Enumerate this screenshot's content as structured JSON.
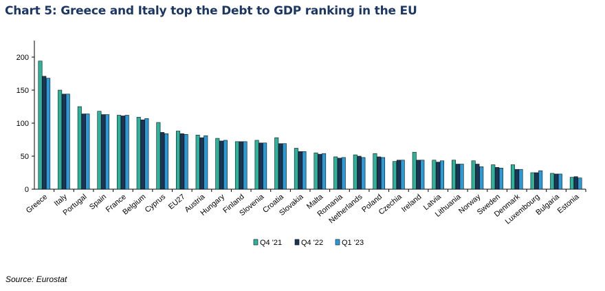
{
  "page": {
    "title": "Chart 5: Greece and Italy top the Debt to GDP ranking in the EU",
    "source": "Source: Eurostat"
  },
  "chart_data": {
    "type": "bar",
    "title": "Chart 5: Greece and Italy top the Debt to GDP ranking in the EU",
    "xlabel": "",
    "ylabel": "",
    "ylim": [
      0,
      225
    ],
    "yticks": [
      0,
      50,
      100,
      150,
      200
    ],
    "grid": false,
    "legend": "bottom-center",
    "categories": [
      "Greece",
      "Italy",
      "Portugal",
      "Spain",
      "France",
      "Belgium",
      "Cyprus",
      "EU27",
      "Austria",
      "Hungary",
      "Finland",
      "Slovenia",
      "Croatia",
      "Slovakia",
      "Malta",
      "Romania",
      "Netherlands",
      "Poland",
      "Czechia",
      "Ireland",
      "Latvia",
      "Lithuania",
      "Norway",
      "Sweden",
      "Denmark",
      "Luxembourg",
      "Bulgaria",
      "Estonia"
    ],
    "series": [
      {
        "name": "Q4 '21",
        "color": "#2db39b",
        "values": [
          194,
          150,
          125,
          118,
          112,
          109,
          101,
          88,
          82,
          77,
          72,
          74,
          78,
          62,
          55,
          49,
          52,
          54,
          42,
          56,
          44,
          44,
          43,
          37,
          37,
          25,
          24,
          18
        ]
      },
      {
        "name": "Q4 '22",
        "color": "#1c3557",
        "values": [
          171,
          144,
          114,
          113,
          111,
          105,
          86,
          84,
          78,
          73,
          72,
          70,
          69,
          57,
          53,
          47,
          50,
          49,
          44,
          44,
          41,
          38,
          38,
          33,
          30,
          25,
          23,
          19
        ]
      },
      {
        "name": "Q1 '23",
        "color": "#2a9bd7",
        "values": [
          168,
          144,
          114,
          113,
          112,
          107,
          84,
          83,
          81,
          74,
          72,
          70,
          69,
          57,
          54,
          48,
          48,
          48,
          44,
          44,
          43,
          38,
          34,
          32,
          30,
          28,
          23,
          17
        ]
      }
    ]
  }
}
